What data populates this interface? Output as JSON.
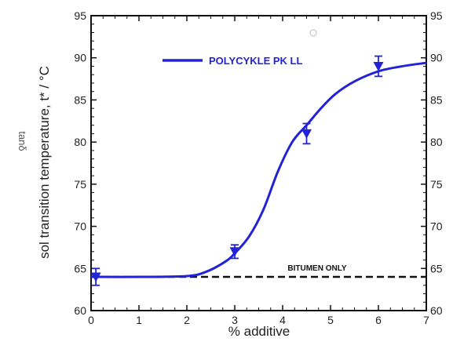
{
  "chart_data": {
    "type": "line",
    "xlabel": "% additive",
    "ylabel": "sol transition temperature, t* / °C",
    "ghost_label": "tanδ",
    "xlim": [
      0,
      7
    ],
    "ylim": [
      60,
      95
    ],
    "x_ticks": [
      "0",
      "1",
      "2",
      "3",
      "4",
      "5",
      "6",
      "7"
    ],
    "y_ticks": [
      "60",
      "65",
      "70",
      "75",
      "80",
      "85",
      "90",
      "95"
    ],
    "y_ticks_right": [
      "60",
      "65",
      "70",
      "75",
      "80",
      "85",
      "90",
      "95"
    ],
    "legend_position": "top-center",
    "colors": {
      "series": "#2323d6",
      "baseline": "#111111"
    },
    "series": [
      {
        "name": "POLYCYKLE PK LL",
        "style": "solid line with triangle markers and error bars",
        "points": [
          {
            "x": 0.1,
            "y": 64.0,
            "err": 1.0
          },
          {
            "x": 3.0,
            "y": 67.0,
            "err": 0.8
          },
          {
            "x": 4.5,
            "y": 81.0,
            "err": 1.2
          },
          {
            "x": 6.0,
            "y": 89.0,
            "err": 1.2
          }
        ],
        "curve": [
          [
            0.0,
            64.0
          ],
          [
            1.0,
            64.0
          ],
          [
            2.0,
            64.1
          ],
          [
            2.4,
            64.6
          ],
          [
            2.8,
            65.8
          ],
          [
            3.0,
            66.8
          ],
          [
            3.3,
            68.8
          ],
          [
            3.6,
            72.0
          ],
          [
            3.9,
            76.5
          ],
          [
            4.2,
            80.0
          ],
          [
            4.5,
            82.0
          ],
          [
            4.8,
            84.0
          ],
          [
            5.1,
            85.7
          ],
          [
            5.5,
            87.2
          ],
          [
            6.0,
            88.4
          ],
          [
            6.5,
            89.0
          ],
          [
            7.0,
            89.4
          ]
        ]
      }
    ],
    "reference_lines": [
      {
        "label": "BITUMEN ONLY",
        "y": 64.0,
        "style": "dashed"
      }
    ]
  }
}
